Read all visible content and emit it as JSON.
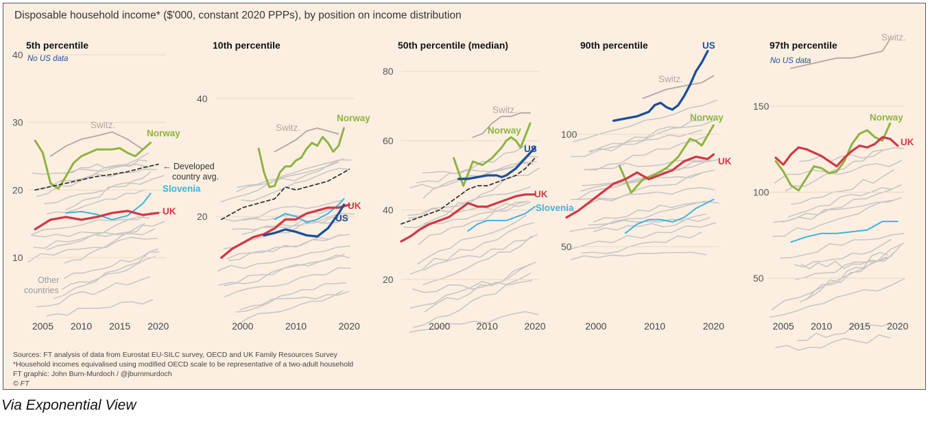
{
  "header": {
    "title": "Disposable household income* ($'000, constant 2020 PPPs), by position on income distribution"
  },
  "footer": {
    "sources": "Sources: FT analysis of data from Eurostat EU-SILC survey, OECD and UK Family Resources Survey",
    "note": "*Household incomes equivalised using modified OECD scale to be representative of a two-adult household",
    "credit": "FT graphic: John Burn-Murdoch / @jburnmurdoch",
    "copyright": "© FT"
  },
  "caption": "Via Exponential View",
  "colors": {
    "norway": "#8db33f",
    "uk": "#d23848",
    "us": "#1a4f9a",
    "slovenia": "#3cb2e0",
    "switz": "#b4a59a",
    "dev": "#333333",
    "other": "#c8c6c4",
    "background": "#fcefe1"
  },
  "chart_data": [
    {
      "type": "line",
      "title": "5th percentile",
      "note": "No US data",
      "xlim": [
        2003,
        2021
      ],
      "ylim": [
        0,
        40
      ],
      "xticks": [
        2005,
        2010,
        2015,
        2020
      ],
      "xtick_labels": [
        "2005",
        "2010",
        "2015",
        "2020"
      ],
      "yticks": [
        10,
        20,
        30,
        40
      ],
      "ytick_labels": [
        "10",
        "20",
        "30",
        "40"
      ],
      "extra_labels": [
        "Other countries",
        "← Developed country avg."
      ],
      "series": [
        {
          "name": "Switz.",
          "color_key": "switz",
          "width": 1.8,
          "x": [
            2006,
            2008,
            2010,
            2012,
            2014,
            2016,
            2018
          ],
          "y": [
            25,
            26.5,
            27.5,
            28,
            28.6,
            27.5,
            26
          ]
        },
        {
          "name": "Norway",
          "color_key": "norway",
          "width": 3,
          "x": [
            2004,
            2005,
            2006,
            2007,
            2008,
            2009,
            2010,
            2011,
            2012,
            2013,
            2014,
            2015,
            2016,
            2017,
            2018,
            2019
          ],
          "y": [
            27.3,
            25.5,
            21,
            20.2,
            22,
            24,
            25,
            25.5,
            26,
            26,
            26,
            26.2,
            25.5,
            25,
            26,
            27
          ]
        },
        {
          "name": "Developed country avg.",
          "color_key": "dev",
          "width": 1.8,
          "dash": "5,4",
          "x": [
            2004,
            2006,
            2008,
            2010,
            2012,
            2014,
            2016,
            2018,
            2020
          ],
          "y": [
            20,
            20.5,
            21,
            21.5,
            22,
            22.3,
            22.7,
            23.3,
            23.8
          ]
        },
        {
          "name": "Slovenia",
          "color_key": "slovenia",
          "width": 2,
          "x": [
            2008,
            2010,
            2012,
            2014,
            2016,
            2018,
            2019
          ],
          "y": [
            16.6,
            16.8,
            16.4,
            15.6,
            16.2,
            18,
            19.5
          ]
        },
        {
          "name": "UK",
          "color_key": "uk",
          "width": 3.3,
          "x": [
            2004,
            2006,
            2008,
            2010,
            2012,
            2014,
            2016,
            2018,
            2020
          ],
          "y": [
            14.2,
            15.6,
            16,
            15.6,
            16,
            16.6,
            16.9,
            16.3,
            16.6
          ]
        }
      ]
    },
    {
      "type": "line",
      "title": "10th percentile",
      "xlim": [
        1995,
        2021
      ],
      "ylim": [
        0,
        45
      ],
      "xticks": [
        2000,
        2010,
        2020
      ],
      "xtick_labels": [
        "2000",
        "2010",
        "2020"
      ],
      "yticks": [
        20,
        40
      ],
      "ytick_labels": [
        "20",
        "40"
      ],
      "series": [
        {
          "name": "Switz.",
          "color_key": "switz",
          "width": 1.8,
          "x": [
            2006,
            2008,
            2010,
            2012,
            2014,
            2016,
            2018
          ],
          "y": [
            31,
            32,
            33,
            34.5,
            35,
            34.5,
            34
          ]
        },
        {
          "name": "Norway",
          "color_key": "norway",
          "width": 3,
          "x": [
            2003,
            2004,
            2005,
            2006,
            2007,
            2008,
            2009,
            2010,
            2011,
            2012,
            2013,
            2014,
            2015,
            2016,
            2017,
            2018,
            2019
          ],
          "y": [
            31.5,
            27.5,
            25,
            25.2,
            27.5,
            28.5,
            28.5,
            29.5,
            30,
            31.5,
            32.5,
            32,
            33.5,
            32.5,
            31,
            32,
            35
          ]
        },
        {
          "name": "Developed country avg.",
          "color_key": "dev",
          "width": 1.8,
          "dash": "5,4",
          "x": [
            1996,
            1998,
            2000,
            2002,
            2004,
            2006,
            2008,
            2010,
            2012,
            2014,
            2016,
            2018,
            2020
          ],
          "y": [
            19.5,
            20.5,
            21.5,
            22,
            22.5,
            23,
            25,
            24.5,
            25,
            25.5,
            26,
            27,
            28
          ]
        },
        {
          "name": "Slovenia",
          "color_key": "slovenia",
          "width": 2,
          "x": [
            2006,
            2008,
            2010,
            2012,
            2014,
            2016,
            2018,
            2019
          ],
          "y": [
            19.5,
            20.5,
            20,
            19,
            19.5,
            20.5,
            22,
            23
          ]
        },
        {
          "name": "UK",
          "color_key": "uk",
          "width": 3.3,
          "x": [
            1996,
            1998,
            2000,
            2002,
            2004,
            2006,
            2008,
            2010,
            2012,
            2014,
            2016,
            2018,
            2020
          ],
          "y": [
            13,
            14.5,
            15.5,
            16.5,
            17,
            18,
            19.5,
            19.5,
            20.5,
            21,
            21.5,
            21.5,
            22
          ]
        },
        {
          "name": "US",
          "color_key": "us",
          "width": 3.3,
          "x": [
            2004,
            2006,
            2008,
            2010,
            2012,
            2014,
            2016,
            2018,
            2019
          ],
          "y": [
            16.8,
            17.2,
            17.8,
            17.4,
            16.8,
            16.6,
            18,
            20.5,
            22
          ]
        }
      ]
    },
    {
      "type": "line",
      "title": "50th percentile (median)",
      "xlim": [
        1992,
        2021
      ],
      "ylim": [
        0,
        90
      ],
      "xticks": [
        2000,
        2010,
        2020
      ],
      "xtick_labels": [
        "2000",
        "2010",
        "2020"
      ],
      "yticks": [
        20,
        40,
        60,
        80
      ],
      "ytick_labels": [
        "20",
        "40",
        "60",
        "80"
      ],
      "series": [
        {
          "name": "Switz.",
          "color_key": "switz",
          "width": 1.8,
          "x": [
            2007,
            2009,
            2011,
            2013,
            2015,
            2017,
            2019
          ],
          "y": [
            61,
            62,
            65,
            67,
            67,
            68,
            68
          ]
        },
        {
          "name": "Norway",
          "color_key": "norway",
          "width": 3,
          "x": [
            2003,
            2005,
            2007,
            2009,
            2011,
            2013,
            2014,
            2015,
            2016,
            2017,
            2019
          ],
          "y": [
            55,
            47,
            54,
            53,
            55,
            58,
            60,
            61,
            60,
            58,
            65
          ]
        },
        {
          "name": "Developed country avg.",
          "color_key": "dev",
          "width": 1.8,
          "dash": "5,4",
          "x": [
            1992,
            1994,
            1996,
            1998,
            2000,
            2002,
            2004,
            2006,
            2008,
            2010,
            2012,
            2014,
            2016,
            2018,
            2020
          ],
          "y": [
            36,
            37,
            38,
            39,
            40,
            42,
            44,
            46,
            47,
            47,
            48,
            49,
            50,
            52,
            55
          ]
        },
        {
          "name": "Slovenia",
          "color_key": "slovenia",
          "width": 2,
          "x": [
            2006,
            2008,
            2010,
            2012,
            2014,
            2016,
            2018,
            2020
          ],
          "y": [
            34,
            36,
            37,
            37,
            37,
            38,
            39,
            41
          ]
        },
        {
          "name": "UK",
          "color_key": "uk",
          "width": 3.3,
          "x": [
            1992,
            1994,
            1996,
            1998,
            2000,
            2002,
            2004,
            2006,
            2008,
            2010,
            2012,
            2014,
            2016,
            2018,
            2020
          ],
          "y": [
            31,
            32.5,
            34.5,
            36,
            37,
            38,
            40,
            42,
            41,
            41,
            42,
            43,
            44,
            44.5,
            44.5
          ]
        },
        {
          "name": "US",
          "color_key": "us",
          "width": 3.3,
          "x": [
            2004,
            2006,
            2008,
            2010,
            2012,
            2013,
            2014,
            2016,
            2018,
            2020
          ],
          "y": [
            49,
            49,
            49.5,
            50,
            50,
            49.5,
            50,
            52,
            55,
            58
          ]
        }
      ]
    },
    {
      "type": "line",
      "title": "90th percentile",
      "xlim": [
        1995,
        2021
      ],
      "ylim": [
        40,
        140
      ],
      "xticks": [
        2000,
        2010,
        2020
      ],
      "xtick_labels": [
        "2000",
        "2010",
        "2020"
      ],
      "yticks": [
        50,
        100
      ],
      "ytick_labels": [
        "50",
        "100"
      ],
      "series": [
        {
          "name": "Switz.",
          "color_key": "switz",
          "width": 1.8,
          "x": [
            2008,
            2010,
            2012,
            2014,
            2016,
            2018,
            2020
          ],
          "y": [
            116,
            118,
            120,
            121,
            122,
            123,
            126
          ]
        },
        {
          "name": "Norway",
          "color_key": "norway",
          "width": 3,
          "x": [
            2004,
            2006,
            2008,
            2010,
            2012,
            2014,
            2016,
            2017,
            2018,
            2020
          ],
          "y": [
            86,
            74,
            80,
            82,
            85,
            90,
            98,
            97,
            95,
            104
          ]
        },
        {
          "name": "UK",
          "color_key": "uk",
          "width": 3.3,
          "x": [
            1995,
            1997,
            1999,
            2001,
            2003,
            2005,
            2007,
            2009,
            2011,
            2013,
            2015,
            2017,
            2019,
            2020
          ],
          "y": [
            63,
            66,
            70,
            74,
            78,
            80,
            83,
            80,
            82,
            84,
            88,
            90,
            89,
            91
          ]
        },
        {
          "name": "Slovenia",
          "color_key": "slovenia",
          "width": 2,
          "x": [
            2005,
            2007,
            2009,
            2011,
            2013,
            2015,
            2017,
            2020
          ],
          "y": [
            56,
            60,
            62,
            62,
            61,
            63,
            67,
            71
          ]
        },
        {
          "name": "US",
          "color_key": "us",
          "width": 3.3,
          "x": [
            2003,
            2005,
            2007,
            2009,
            2010,
            2011,
            2012,
            2013,
            2014,
            2015,
            2016,
            2017,
            2018,
            2019
          ],
          "y": [
            106,
            107,
            108,
            110,
            113,
            114,
            112,
            111,
            113,
            117,
            122,
            128,
            132,
            137
          ]
        }
      ]
    },
    {
      "type": "line",
      "title": "97th percentile",
      "note": "No US data",
      "xlim": [
        2003,
        2021
      ],
      "ylim": [
        0,
        200
      ],
      "xticks": [
        2005,
        2010,
        2015,
        2020
      ],
      "xtick_labels": [
        "2005",
        "2010",
        "2015",
        "2020"
      ],
      "yticks": [
        50,
        100,
        150
      ],
      "ytick_labels": [
        "50",
        "100",
        "150"
      ],
      "series": [
        {
          "name": "Switz.",
          "color_key": "switz",
          "width": 1.8,
          "x": [
            2006,
            2008,
            2010,
            2012,
            2014,
            2016,
            2018,
            2019
          ],
          "y": [
            172,
            174,
            176,
            178,
            178,
            180,
            182,
            189
          ]
        },
        {
          "name": "Norway",
          "color_key": "norway",
          "width": 3,
          "x": [
            2004,
            2005,
            2006,
            2007,
            2008,
            2009,
            2010,
            2011,
            2012,
            2013,
            2014,
            2015,
            2016,
            2017,
            2018,
            2019
          ],
          "y": [
            118,
            112,
            104,
            101,
            108,
            115,
            114,
            111,
            112,
            118,
            128,
            134,
            136,
            132,
            130,
            140
          ]
        },
        {
          "name": "UK",
          "color_key": "uk",
          "width": 3.3,
          "x": [
            2004,
            2005,
            2006,
            2007,
            2008,
            2009,
            2010,
            2011,
            2012,
            2013,
            2014,
            2015,
            2016,
            2017,
            2018,
            2019,
            2020
          ],
          "y": [
            120,
            116,
            122,
            126,
            125,
            123,
            121,
            118,
            115,
            120,
            124,
            127,
            126,
            128,
            132,
            131,
            127
          ]
        },
        {
          "name": "Slovenia",
          "color_key": "slovenia",
          "width": 2,
          "x": [
            2006,
            2008,
            2010,
            2012,
            2014,
            2016,
            2018,
            2020
          ],
          "y": [
            71,
            74,
            76,
            76,
            77,
            78,
            83,
            83
          ]
        }
      ]
    }
  ]
}
